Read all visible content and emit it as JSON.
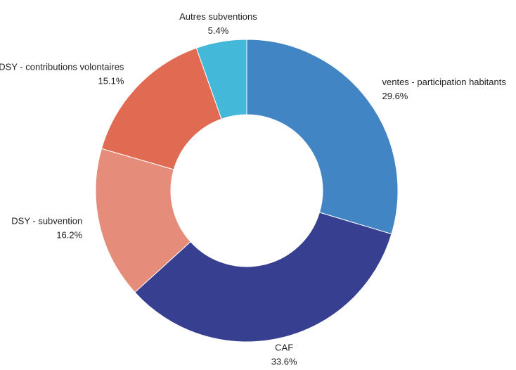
{
  "chart_data": {
    "type": "donut",
    "categories": [
      "ventes - participation habitants",
      "CAF",
      "DSY - subvention",
      "DSY - contributions volontaires",
      "Autres subventions"
    ],
    "values": [
      29.6,
      33.6,
      16.2,
      15.1,
      5.4
    ],
    "value_labels": [
      "29.6%",
      "33.6%",
      "16.2%",
      "15.1%",
      "5.4%"
    ],
    "colors": [
      "#4285c4",
      "#373f91",
      "#e58c7a",
      "#e06b52",
      "#44b8d8"
    ]
  }
}
